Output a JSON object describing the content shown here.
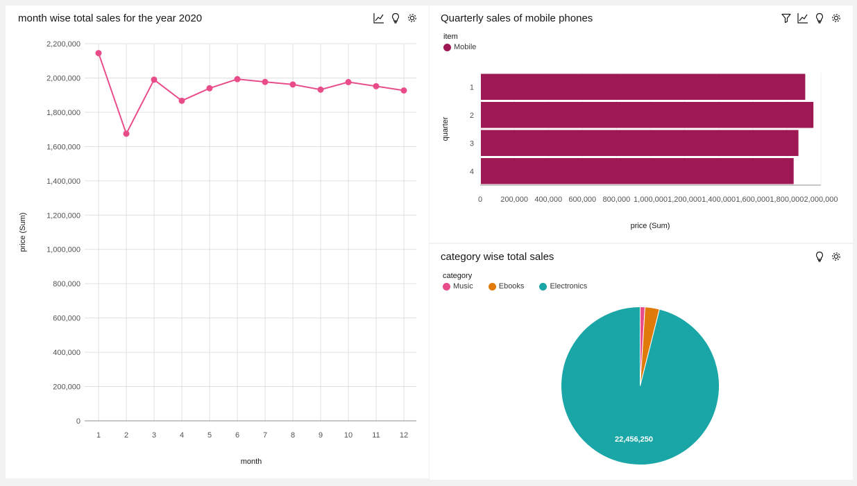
{
  "colors": {
    "line": "#e84d8a",
    "bar": "#9e1853",
    "music": "#e84d8a",
    "ebooks": "#e07b0a",
    "electronics": "#1aa6a6",
    "grid": "#e0e0e0",
    "axis": "#8d8d8d"
  },
  "panels": {
    "line": {
      "title": "month wise total sales for the year 2020",
      "tools": [
        "chart-type-icon",
        "insight-bulb-icon",
        "settings-gear-icon"
      ]
    },
    "bar": {
      "title": "Quarterly sales of mobile phones",
      "tools": [
        "filter-icon",
        "chart-type-icon",
        "insight-bulb-icon",
        "settings-gear-icon"
      ]
    },
    "pie": {
      "title": "category wise total sales",
      "tools": [
        "insight-bulb-icon",
        "settings-gear-icon"
      ]
    }
  },
  "chart_data": [
    {
      "type": "line",
      "title": "month wise total sales for the year 2020",
      "xlabel": "month",
      "ylabel": "price (Sum)",
      "categories": [
        "1",
        "2",
        "3",
        "4",
        "5",
        "6",
        "7",
        "8",
        "9",
        "10",
        "11",
        "12"
      ],
      "values": [
        2145000,
        1675000,
        1990000,
        1867000,
        1940000,
        1993000,
        1977000,
        1962000,
        1932000,
        1976000,
        1952000,
        1927000
      ],
      "ylim": [
        0,
        2200000
      ],
      "yticks": [
        0,
        200000,
        400000,
        600000,
        800000,
        1000000,
        1200000,
        1400000,
        1600000,
        1800000,
        2000000,
        2200000
      ],
      "ytick_labels": [
        "0",
        "200,000",
        "400,000",
        "600,000",
        "800,000",
        "1,000,000",
        "1,200,000",
        "1,400,000",
        "1,600,000",
        "1,800,000",
        "2,000,000",
        "2,200,000"
      ],
      "grid": true
    },
    {
      "type": "bar",
      "orientation": "horizontal",
      "title": "Quarterly sales of mobile phones",
      "legend_title": "item",
      "series": [
        {
          "name": "Mobile",
          "values": [
            1908000,
            1956000,
            1868000,
            1840000
          ]
        }
      ],
      "categories": [
        "1",
        "2",
        "3",
        "4"
      ],
      "xlabel": "price (Sum)",
      "ylabel": "quarter",
      "xlim": [
        0,
        2000000
      ],
      "xticks": [
        0,
        200000,
        400000,
        600000,
        800000,
        1000000,
        1200000,
        1400000,
        1600000,
        1800000,
        2000000
      ],
      "xtick_labels": [
        "0",
        "200,000",
        "400,000",
        "600,000",
        "800,000",
        "1,000,000",
        "1,200,000",
        "1,400,000",
        "1,600,000",
        "1,800,000",
        "2,000,000"
      ],
      "legend_position": "top-left"
    },
    {
      "type": "pie",
      "title": "category wise total sales",
      "legend_title": "category",
      "categories": [
        "Music",
        "Ebooks",
        "Electronics"
      ],
      "values": [
        230000,
        690000,
        22456250
      ],
      "data_labels": [
        "",
        "",
        "22,456,250"
      ],
      "legend_position": "top-left"
    }
  ]
}
